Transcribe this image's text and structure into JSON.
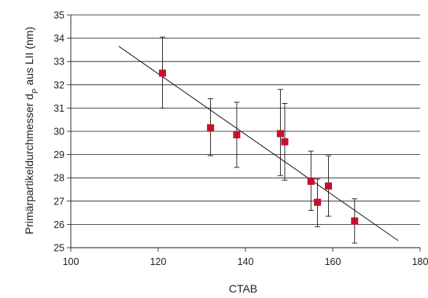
{
  "chart_data": {
    "type": "scatter",
    "xlabel": "CTAB",
    "ylabel": "Primärpartikeldurchmesser d",
    "ylabel_sub": "P",
    "ylabel_tail": " aus LII (nm)",
    "xlim": [
      100,
      180
    ],
    "ylim": [
      25,
      35
    ],
    "grid": true,
    "x_ticks": [
      "100",
      "120",
      "140",
      "160",
      "180"
    ],
    "y_ticks": [
      "25",
      "26",
      "27",
      "28",
      "29",
      "30",
      "31",
      "32",
      "33",
      "34",
      "35"
    ],
    "series": [
      {
        "x": [
          121,
          132,
          138,
          148,
          149,
          155,
          156.5,
          159,
          165
        ],
        "y": [
          32.5,
          30.15,
          29.85,
          29.9,
          29.55,
          27.85,
          26.95,
          27.65,
          26.15
        ],
        "err_low": [
          31.0,
          28.95,
          28.45,
          28.1,
          27.9,
          26.6,
          25.9,
          26.35,
          25.2
        ],
        "err_high": [
          34.05,
          31.4,
          31.25,
          31.8,
          31.2,
          29.15,
          27.95,
          28.95,
          27.1
        ],
        "marker_color": "#c8102e"
      }
    ],
    "trendline": {
      "x": [
        111,
        175
      ],
      "y": [
        33.65,
        25.3
      ]
    }
  }
}
